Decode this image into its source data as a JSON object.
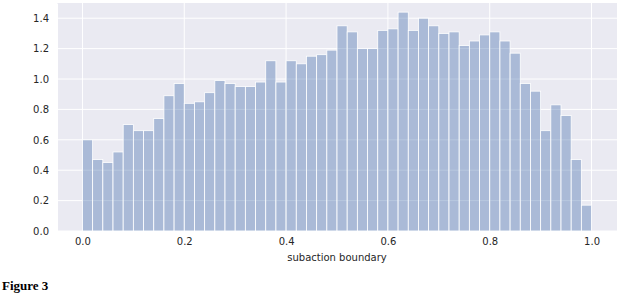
{
  "chart_data": {
    "type": "histogram",
    "x_label": "subaction boundary",
    "annotations": [
      "Figure 3"
    ],
    "bins": [
      0,
      0.02,
      0.04,
      0.06,
      0.08,
      0.1,
      0.12,
      0.14,
      0.16,
      0.18,
      0.2,
      0.22,
      0.24,
      0.26,
      0.28,
      0.3,
      0.32,
      0.34,
      0.36,
      0.38,
      0.4,
      0.42,
      0.44,
      0.46,
      0.48,
      0.5,
      0.52,
      0.54,
      0.56,
      0.58,
      0.6,
      0.62,
      0.64,
      0.66,
      0.68,
      0.7,
      0.72,
      0.74,
      0.76,
      0.78,
      0.8,
      0.82,
      0.84,
      0.86,
      0.88,
      0.9,
      0.92,
      0.94,
      0.96,
      0.98,
      1.0
    ],
    "values": [
      0.6,
      0.47,
      0.45,
      0.52,
      0.7,
      0.66,
      0.66,
      0.74,
      0.89,
      0.97,
      0.84,
      0.85,
      0.91,
      0.99,
      0.97,
      0.95,
      0.95,
      0.98,
      1.12,
      0.98,
      1.12,
      1.1,
      1.15,
      1.16,
      1.19,
      1.35,
      1.31,
      1.2,
      1.2,
      1.32,
      1.33,
      1.44,
      1.32,
      1.4,
      1.35,
      1.3,
      1.31,
      1.22,
      1.25,
      1.29,
      1.31,
      1.25,
      1.17,
      0.97,
      0.92,
      0.66,
      0.83,
      0.76,
      0.47,
      0.17
    ],
    "color": "#4c72b0",
    "xlim": [
      -0.05,
      1.05
    ],
    "xticks": [
      {
        "value": 0,
        "label": "0.0"
      },
      {
        "value": 0.2,
        "label": "0.2"
      },
      {
        "value": 0.4,
        "label": "0.4"
      },
      {
        "value": 0.6,
        "label": "0.6"
      },
      {
        "value": 0.8,
        "label": "0.8"
      },
      {
        "value": 1,
        "label": "1.0"
      }
    ],
    "ylim": [
      0,
      1.5
    ],
    "yticks": [
      {
        "value": 0,
        "label": "0.0"
      },
      {
        "value": 0.2,
        "label": "0.2"
      },
      {
        "value": 0.4,
        "label": "0.4"
      },
      {
        "value": 0.6,
        "label": "0.6"
      },
      {
        "value": 0.8,
        "label": "0.8"
      },
      {
        "value": 1,
        "label": "1.0"
      },
      {
        "value": 1.2,
        "label": "1.2"
      },
      {
        "value": 1.4,
        "label": "1.4"
      }
    ],
    "grid": true
  }
}
